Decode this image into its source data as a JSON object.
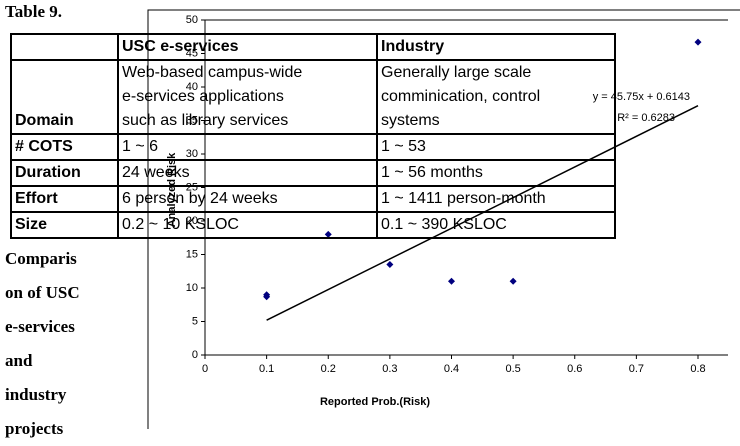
{
  "table_label": "Table 9.",
  "caption_lines": [
    "Comparis",
    "on of USC",
    "e-services",
    "and",
    "industry",
    "projects"
  ],
  "table": {
    "header": [
      "USC e-services",
      "Industry"
    ],
    "rows": [
      [
        [
          "Domain"
        ],
        [
          "Web-based campus-wide",
          "e-services applications",
          "such as library services"
        ],
        [
          "Generally large scale",
          "comminication, control",
          "systems"
        ]
      ],
      [
        [
          "# COTS"
        ],
        [
          "1 ~ 6"
        ],
        [
          "1 ~ 53"
        ]
      ],
      [
        [
          "Duration"
        ],
        [
          "24 weeks"
        ],
        [
          "1 ~ 56 months"
        ]
      ],
      [
        [
          "Effort"
        ],
        [
          "6 person by 24 weeks"
        ],
        [
          "1 ~ 1411 person-month"
        ]
      ],
      [
        [
          "Size"
        ],
        [
          "0.2 ~ 10 KSLOC"
        ],
        [
          "0.1 ~ 390 KSLOC"
        ]
      ]
    ]
  },
  "chart_data": {
    "type": "scatter",
    "x_label": "Reported Prob.(Risk)",
    "y_label": "Analyzed Risk",
    "x": [
      0.1,
      0.1,
      0.2,
      0.3,
      0.4,
      0.5,
      0.8
    ],
    "values": [
      9,
      8.7,
      18,
      13.5,
      11,
      11,
      46.7
    ],
    "color": "#00007f",
    "xlim": [
      0,
      0.8
    ],
    "ylim": [
      0,
      50
    ],
    "xticks": [
      0,
      0.1,
      0.2,
      0.3,
      0.4,
      0.5,
      0.6,
      0.7,
      0.8
    ],
    "yticks": [
      0,
      5,
      10,
      15,
      20,
      25,
      30,
      35,
      40,
      45,
      50
    ],
    "trendline": {
      "slope": 45.75,
      "intercept": 0.6143,
      "equation": "y = 45.75x + 0.6143",
      "r2": "R² = 0.6283"
    }
  }
}
